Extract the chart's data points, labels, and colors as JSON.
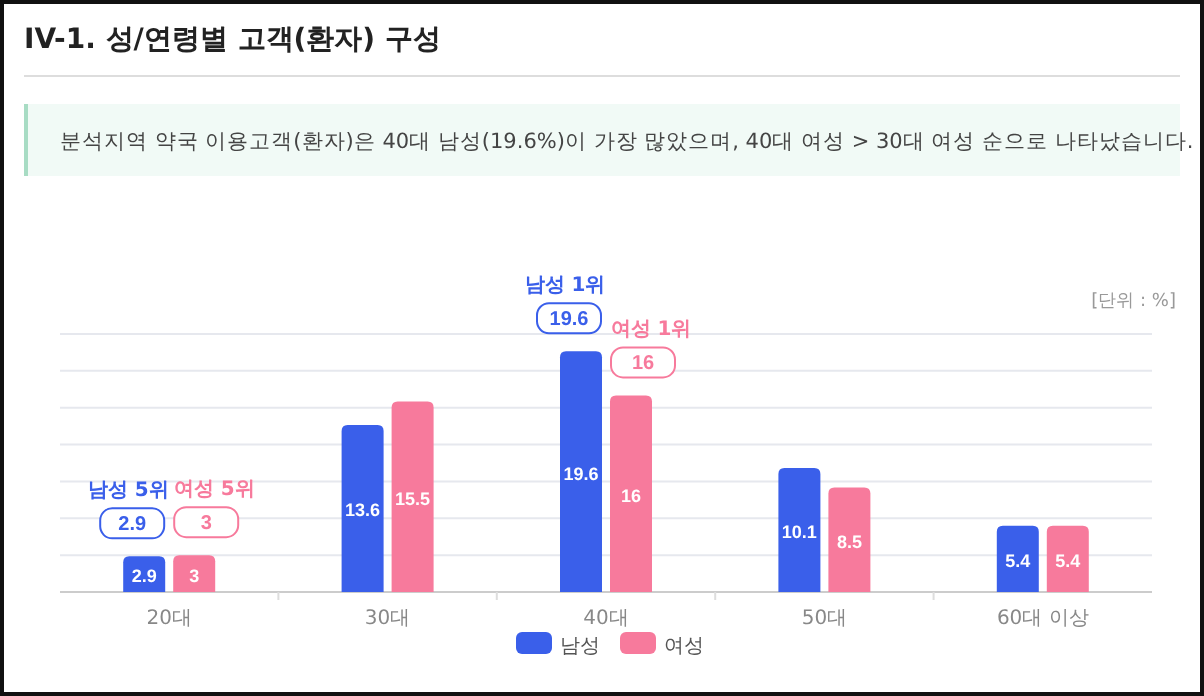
{
  "chart_data": {
    "type": "bar",
    "title": "IV-1. 성/연령별 고객(환자) 구성",
    "subtitle": "분석지역 약국 이용고객(환자)은 40대 남성(19.6%)이 가장 많았으며, 40대 여성 > 30대 여성 순으로 나타났습니다.",
    "categories": [
      "20대",
      "30대",
      "40대",
      "50대",
      "60대 이상"
    ],
    "series": [
      {
        "name": "남성",
        "color": "#3a5fea",
        "values": [
          2.9,
          13.6,
          19.6,
          10.1,
          5.4
        ]
      },
      {
        "name": "여성",
        "color": "#f77a9c",
        "values": [
          3,
          15.5,
          16,
          8.5,
          5.4
        ]
      }
    ],
    "ylim": [
      0,
      21
    ],
    "yticks": [
      {
        "value": 0,
        "label": null
      },
      {
        "value": 3,
        "label": null
      },
      {
        "value": 6,
        "label": null
      },
      {
        "value": 9,
        "label": null
      },
      {
        "value": 12,
        "label": null
      },
      {
        "value": 15,
        "label": null
      },
      {
        "value": 18,
        "label": null
      },
      {
        "value": 21,
        "label": null
      }
    ],
    "tick_labels": "x",
    "grid": "y",
    "legend": "bottom",
    "data_labels": true,
    "annotations": [
      {
        "text": "남성 5위",
        "x": "20대",
        "y": 2.9
      },
      {
        "text": "2.9",
        "x": "20대",
        "y": 2.9
      },
      {
        "text": "여성 5위",
        "x": "20대",
        "y": 3
      },
      {
        "text": "3",
        "x": "20대",
        "y": 3
      },
      {
        "text": "남성 1위",
        "x": "40대",
        "y": 19.6
      },
      {
        "text": "19.6",
        "x": "40대",
        "y": 19.6
      },
      {
        "text": "여성 1위",
        "x": "40대",
        "y": 16
      },
      {
        "text": "16",
        "x": "40대",
        "y": 16
      },
      "[단위 : %]"
    ]
  }
}
